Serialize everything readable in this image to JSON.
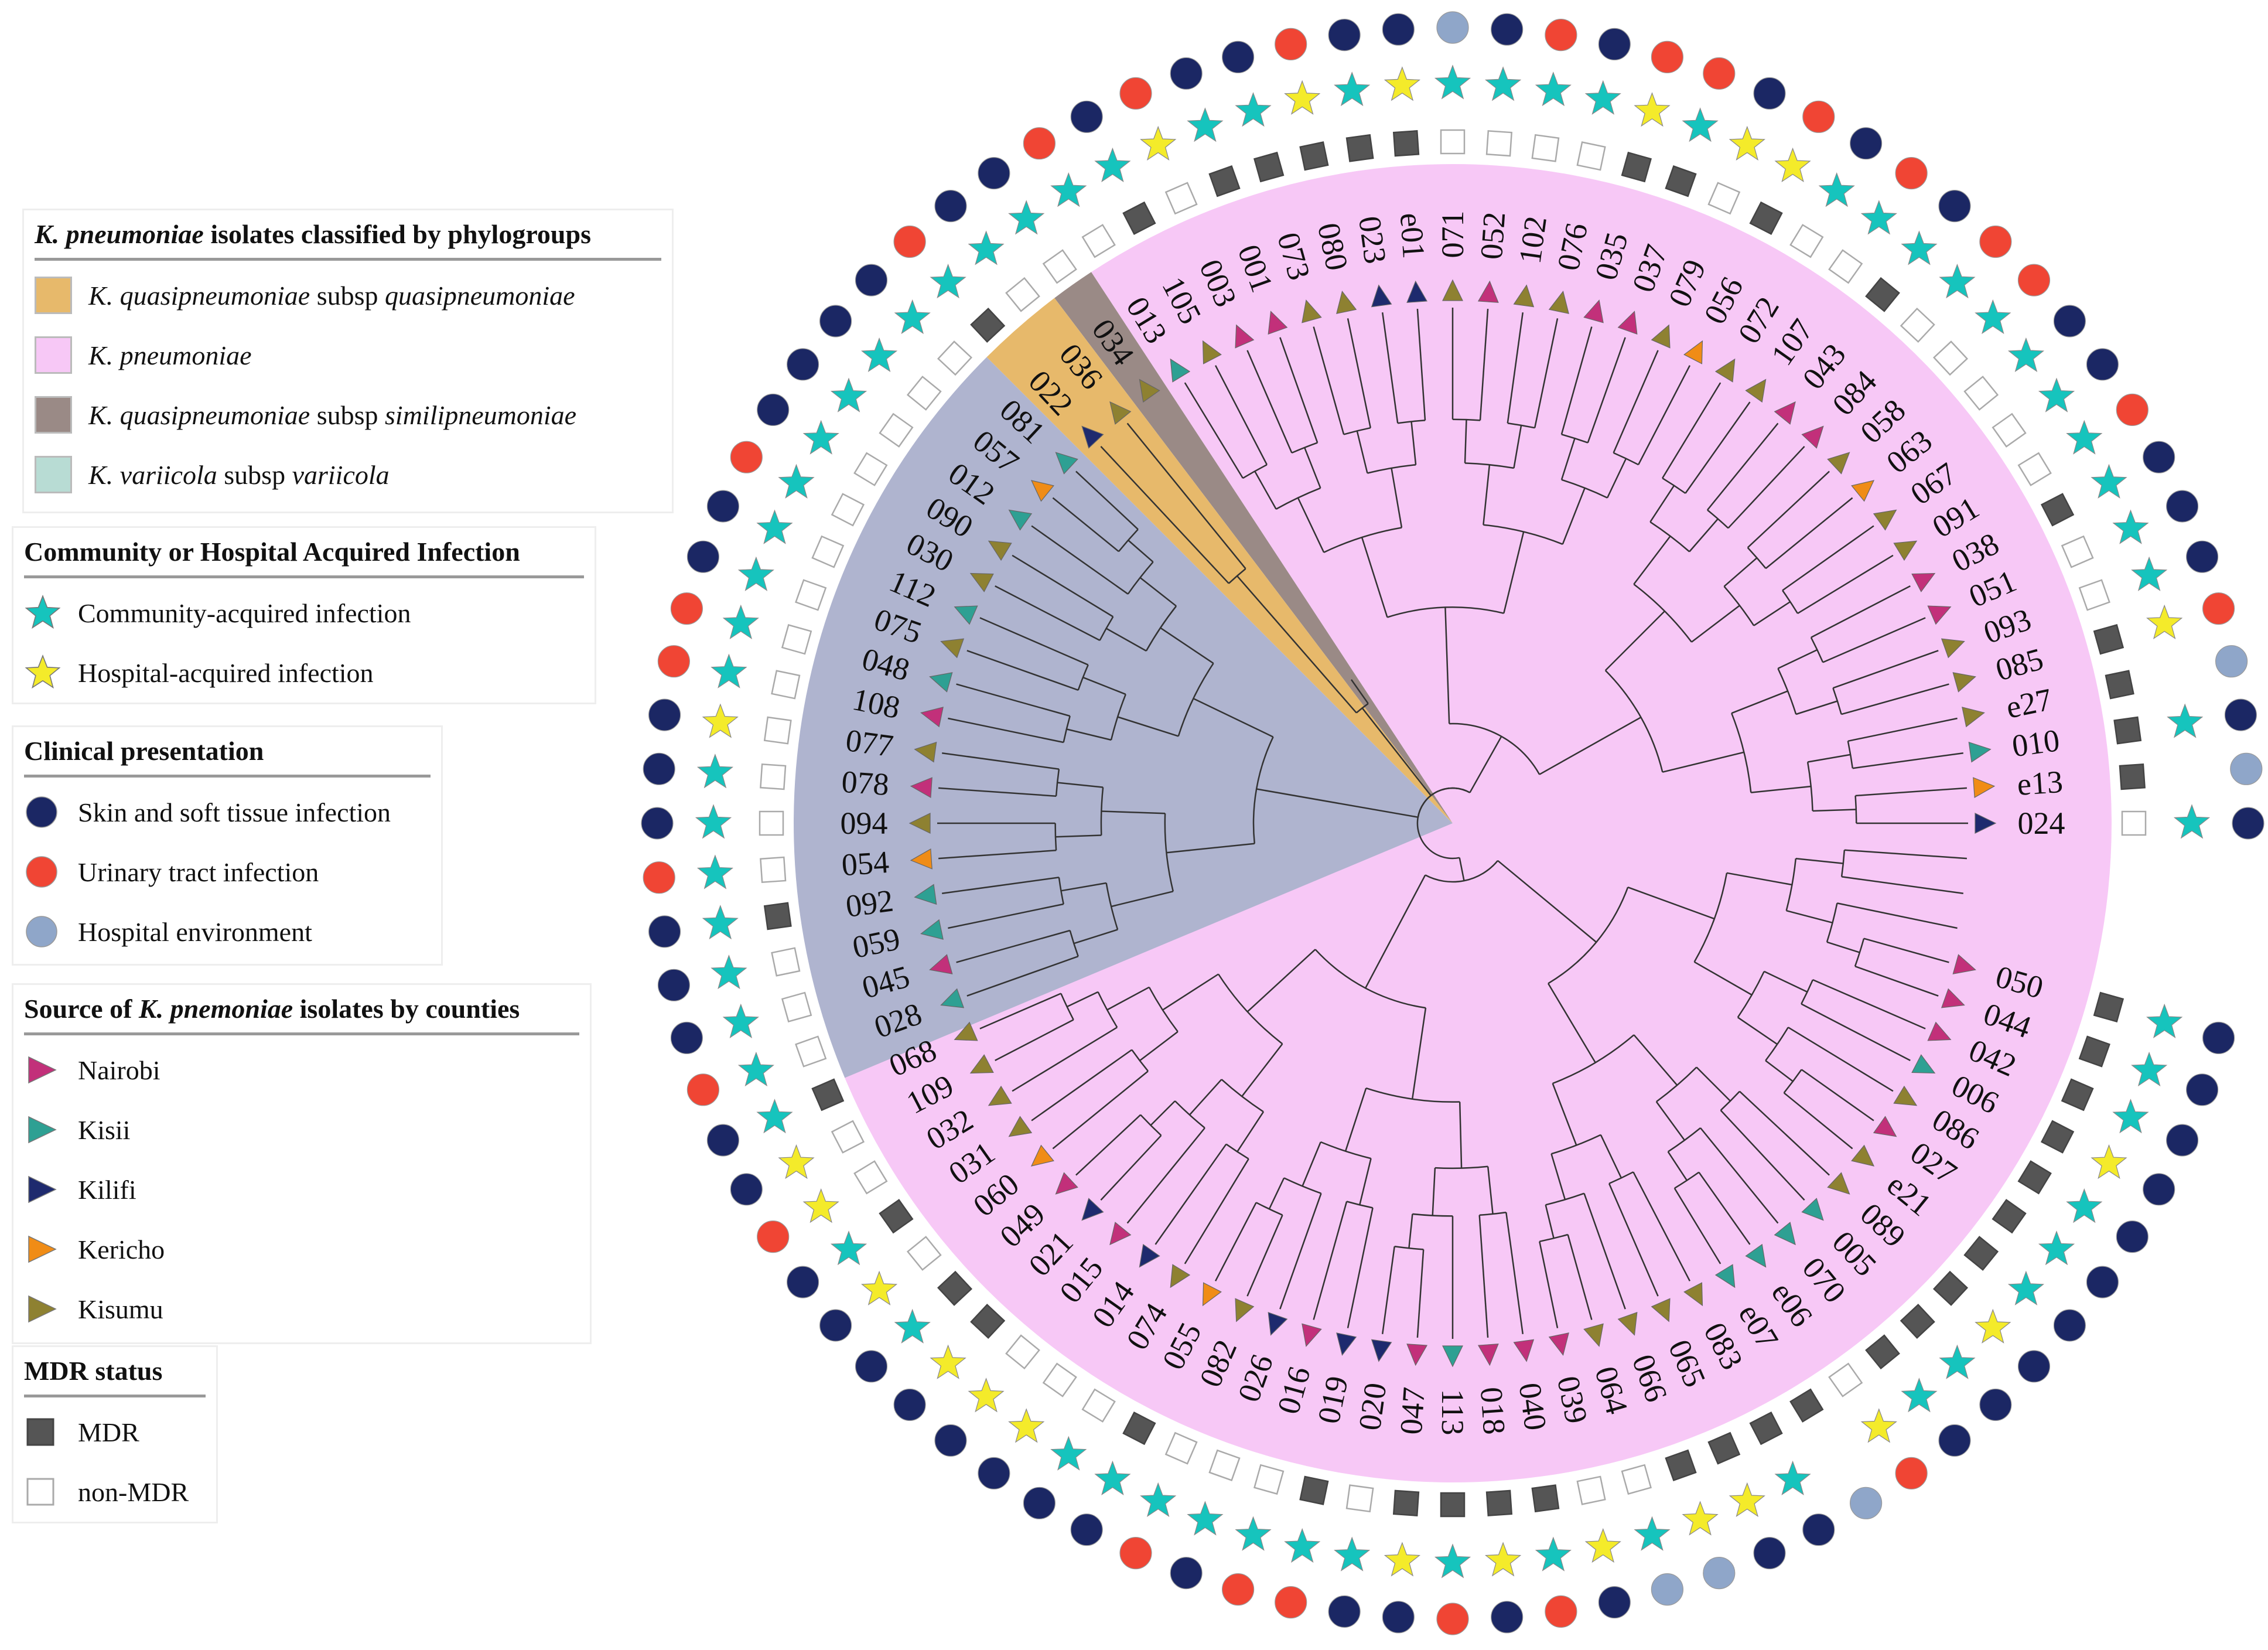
{
  "colors": {
    "clade_pink": "#F7C8F6",
    "clade_gray": "#AFB4CF",
    "clade_orange": "#E7B96B",
    "clade_brown": "#9A8A86",
    "clade_teal": "#B8DCD4",
    "nairobi": "#C2307A",
    "kisii": "#2EA093",
    "kilifi": "#1E2A6E",
    "kericho": "#F08C16",
    "kisumu": "#8E8131",
    "star_community": "#16C4BD",
    "star_hospital": "#F4EB2A",
    "dot_skin": "#1B2764",
    "dot_urinary": "#F04534",
    "dot_environment": "#8FA6C9",
    "mdr": "#555555"
  },
  "legend_phylogroups": {
    "title_italic": "K. pneumoniae",
    "title_rest": " isolates classified by phylogroups",
    "items": [
      {
        "color_key": "clade_orange",
        "italic1": "K. quasipneumoniae",
        "plain": " subsp ",
        "italic2": "quasipneumoniae"
      },
      {
        "color_key": "clade_pink",
        "italic1": "K. pneumoniae",
        "plain": "",
        "italic2": ""
      },
      {
        "color_key": "clade_brown",
        "italic1": "K. quasipneumoniae",
        "plain": " subsp ",
        "italic2": "similipneumoniae"
      },
      {
        "color_key": "clade_teal",
        "italic1": "K. variicola",
        "plain": " subsp ",
        "italic2": "variicola"
      }
    ]
  },
  "legend_infection": {
    "title": "Community or Hospital Acquired Infection",
    "items": [
      {
        "code": "C",
        "label": "Community-acquired infection"
      },
      {
        "code": "H",
        "label": "Hospital-acquired infection"
      }
    ]
  },
  "legend_clinical": {
    "title": "Clinical presentation",
    "items": [
      {
        "code": "S",
        "label": "Skin and soft tissue infection"
      },
      {
        "code": "U",
        "label": "Urinary tract infection"
      },
      {
        "code": "E",
        "label": "Hospital environment"
      }
    ]
  },
  "legend_counties": {
    "title_prefix": "Source of ",
    "title_italic": "K. pnemoniae",
    "title_suffix": " isolates by counties",
    "items": [
      {
        "code": "N",
        "label": "Nairobi"
      },
      {
        "code": "S",
        "label": "Kisii"
      },
      {
        "code": "F",
        "label": "Kilifi"
      },
      {
        "code": "K",
        "label": "Kericho"
      },
      {
        "code": "M",
        "label": "Kisumu"
      }
    ]
  },
  "legend_mdr": {
    "title": "MDR status",
    "items": [
      {
        "code": "1",
        "label": "MDR"
      },
      {
        "code": "0",
        "label": "non-MDR"
      }
    ]
  },
  "tree": {
    "leaves": [
      {
        "id": "024",
        "county": "F",
        "mdr": "0",
        "infection": "C",
        "clinical": "S",
        "group": "pink"
      },
      {
        "id": "e13",
        "county": "K",
        "mdr": "1",
        "infection": "",
        "clinical": "E",
        "group": "pink"
      },
      {
        "id": "010",
        "county": "S",
        "mdr": "1",
        "infection": "C",
        "clinical": "S",
        "group": "pink"
      },
      {
        "id": "e27",
        "county": "M",
        "mdr": "1",
        "infection": "",
        "clinical": "E",
        "group": "pink"
      },
      {
        "id": "085",
        "county": "M",
        "mdr": "1",
        "infection": "H",
        "clinical": "U",
        "group": "pink"
      },
      {
        "id": "093",
        "county": "M",
        "mdr": "0",
        "infection": "C",
        "clinical": "S",
        "group": "pink"
      },
      {
        "id": "051",
        "county": "N",
        "mdr": "0",
        "infection": "C",
        "clinical": "S",
        "group": "pink"
      },
      {
        "id": "038",
        "county": "N",
        "mdr": "1",
        "infection": "C",
        "clinical": "S",
        "group": "pink"
      },
      {
        "id": "091",
        "county": "M",
        "mdr": "0",
        "infection": "C",
        "clinical": "U",
        "group": "pink"
      },
      {
        "id": "067",
        "county": "M",
        "mdr": "0",
        "infection": "C",
        "clinical": "S",
        "group": "pink"
      },
      {
        "id": "063",
        "county": "K",
        "mdr": "0",
        "infection": "C",
        "clinical": "S",
        "group": "pink"
      },
      {
        "id": "058",
        "county": "M",
        "mdr": "0",
        "infection": "C",
        "clinical": "U",
        "group": "pink"
      },
      {
        "id": "084",
        "county": "N",
        "mdr": "0",
        "infection": "C",
        "clinical": "U",
        "group": "pink"
      },
      {
        "id": "043",
        "county": "N",
        "mdr": "1",
        "infection": "C",
        "clinical": "S",
        "group": "pink"
      },
      {
        "id": "107",
        "county": "M",
        "mdr": "0",
        "infection": "C",
        "clinical": "U",
        "group": "pink"
      },
      {
        "id": "072",
        "county": "M",
        "mdr": "0",
        "infection": "C",
        "clinical": "S",
        "group": "pink"
      },
      {
        "id": "056",
        "county": "K",
        "mdr": "1",
        "infection": "H",
        "clinical": "U",
        "group": "pink"
      },
      {
        "id": "079",
        "county": "M",
        "mdr": "0",
        "infection": "H",
        "clinical": "S",
        "group": "pink"
      },
      {
        "id": "037",
        "county": "N",
        "mdr": "1",
        "infection": "C",
        "clinical": "U",
        "group": "pink"
      },
      {
        "id": "035",
        "county": "N",
        "mdr": "1",
        "infection": "H",
        "clinical": "U",
        "group": "pink"
      },
      {
        "id": "076",
        "county": "M",
        "mdr": "0",
        "infection": "C",
        "clinical": "S",
        "group": "pink"
      },
      {
        "id": "102",
        "county": "M",
        "mdr": "0",
        "infection": "C",
        "clinical": "U",
        "group": "pink"
      },
      {
        "id": "052",
        "county": "N",
        "mdr": "0",
        "infection": "C",
        "clinical": "S",
        "group": "pink"
      },
      {
        "id": "071",
        "county": "M",
        "mdr": "0",
        "infection": "C",
        "clinical": "E",
        "group": "pink"
      },
      {
        "id": "e01",
        "county": "F",
        "mdr": "1",
        "infection": "H",
        "clinical": "S",
        "group": "pink"
      },
      {
        "id": "023",
        "county": "F",
        "mdr": "1",
        "infection": "C",
        "clinical": "S",
        "group": "pink"
      },
      {
        "id": "080",
        "county": "M",
        "mdr": "1",
        "infection": "H",
        "clinical": "U",
        "group": "pink"
      },
      {
        "id": "073",
        "county": "M",
        "mdr": "1",
        "infection": "C",
        "clinical": "S",
        "group": "pink"
      },
      {
        "id": "001",
        "county": "N",
        "mdr": "1",
        "infection": "C",
        "clinical": "S",
        "group": "pink"
      },
      {
        "id": "003",
        "county": "N",
        "mdr": "0",
        "infection": "H",
        "clinical": "U",
        "group": "pink"
      },
      {
        "id": "105",
        "county": "M",
        "mdr": "1",
        "infection": "C",
        "clinical": "S",
        "group": "pink"
      },
      {
        "id": "013",
        "county": "S",
        "mdr": "0",
        "infection": "C",
        "clinical": "U",
        "group": "pink"
      },
      {
        "id": "034",
        "county": "M",
        "mdr": "0",
        "infection": "C",
        "clinical": "S",
        "group": "brown"
      },
      {
        "id": "036",
        "county": "M",
        "mdr": "0",
        "infection": "C",
        "clinical": "S",
        "group": "orange"
      },
      {
        "id": "022",
        "county": "F",
        "mdr": "1",
        "infection": "C",
        "clinical": "U",
        "group": "orange"
      },
      {
        "id": "081",
        "county": "S",
        "mdr": "0",
        "infection": "C",
        "clinical": "S",
        "group": "gray"
      },
      {
        "id": "057",
        "county": "K",
        "mdr": "0",
        "infection": "C",
        "clinical": "S",
        "group": "gray"
      },
      {
        "id": "012",
        "county": "S",
        "mdr": "0",
        "infection": "C",
        "clinical": "S",
        "group": "gray"
      },
      {
        "id": "090",
        "county": "M",
        "mdr": "0",
        "infection": "C",
        "clinical": "S",
        "group": "gray"
      },
      {
        "id": "030",
        "county": "M",
        "mdr": "0",
        "infection": "C",
        "clinical": "U",
        "group": "gray"
      },
      {
        "id": "112",
        "county": "S",
        "mdr": "0",
        "infection": "C",
        "clinical": "S",
        "group": "gray"
      },
      {
        "id": "075",
        "county": "M",
        "mdr": "0",
        "infection": "C",
        "clinical": "S",
        "group": "gray"
      },
      {
        "id": "048",
        "county": "S",
        "mdr": "0",
        "infection": "C",
        "clinical": "U",
        "group": "gray"
      },
      {
        "id": "108",
        "county": "N",
        "mdr": "0",
        "infection": "C",
        "clinical": "U",
        "group": "gray"
      },
      {
        "id": "077",
        "county": "M",
        "mdr": "0",
        "infection": "H",
        "clinical": "S",
        "group": "gray"
      },
      {
        "id": "078",
        "county": "N",
        "mdr": "0",
        "infection": "C",
        "clinical": "S",
        "group": "gray"
      },
      {
        "id": "094",
        "county": "M",
        "mdr": "0",
        "infection": "C",
        "clinical": "S",
        "group": "gray"
      },
      {
        "id": "054",
        "county": "K",
        "mdr": "0",
        "infection": "C",
        "clinical": "U",
        "group": "gray"
      },
      {
        "id": "092",
        "county": "S",
        "mdr": "1",
        "infection": "C",
        "clinical": "S",
        "group": "gray"
      },
      {
        "id": "059",
        "county": "S",
        "mdr": "0",
        "infection": "C",
        "clinical": "S",
        "group": "gray"
      },
      {
        "id": "045",
        "county": "N",
        "mdr": "0",
        "infection": "C",
        "clinical": "S",
        "group": "gray"
      },
      {
        "id": "028",
        "county": "S",
        "mdr": "0",
        "infection": "C",
        "clinical": "U",
        "group": "gray"
      },
      {
        "id": "068",
        "county": "M",
        "mdr": "1",
        "infection": "C",
        "clinical": "S",
        "group": "pink"
      },
      {
        "id": "109",
        "county": "M",
        "mdr": "0",
        "infection": "H",
        "clinical": "S",
        "group": "pink"
      },
      {
        "id": "032",
        "county": "M",
        "mdr": "0",
        "infection": "H",
        "clinical": "U",
        "group": "pink"
      },
      {
        "id": "031",
        "county": "M",
        "mdr": "1",
        "infection": "C",
        "clinical": "S",
        "group": "pink"
      },
      {
        "id": "060",
        "county": "K",
        "mdr": "0",
        "infection": "H",
        "clinical": "S",
        "group": "pink"
      },
      {
        "id": "049",
        "county": "N",
        "mdr": "1",
        "infection": "C",
        "clinical": "S",
        "group": "pink"
      },
      {
        "id": "021",
        "county": "F",
        "mdr": "1",
        "infection": "H",
        "clinical": "S",
        "group": "pink"
      },
      {
        "id": "015",
        "county": "N",
        "mdr": "0",
        "infection": "H",
        "clinical": "S",
        "group": "pink"
      },
      {
        "id": "014",
        "county": "F",
        "mdr": "0",
        "infection": "H",
        "clinical": "S",
        "group": "pink"
      },
      {
        "id": "074",
        "county": "M",
        "mdr": "0",
        "infection": "C",
        "clinical": "S",
        "group": "pink"
      },
      {
        "id": "055",
        "county": "K",
        "mdr": "1",
        "infection": "C",
        "clinical": "S",
        "group": "pink"
      },
      {
        "id": "082",
        "county": "M",
        "mdr": "0",
        "infection": "C",
        "clinical": "U",
        "group": "pink"
      },
      {
        "id": "026",
        "county": "F",
        "mdr": "0",
        "infection": "C",
        "clinical": "S",
        "group": "pink"
      },
      {
        "id": "016",
        "county": "N",
        "mdr": "0",
        "infection": "C",
        "clinical": "U",
        "group": "pink"
      },
      {
        "id": "019",
        "county": "F",
        "mdr": "1",
        "infection": "C",
        "clinical": "U",
        "group": "pink"
      },
      {
        "id": "020",
        "county": "F",
        "mdr": "0",
        "infection": "C",
        "clinical": "S",
        "group": "pink"
      },
      {
        "id": "047",
        "county": "N",
        "mdr": "1",
        "infection": "H",
        "clinical": "S",
        "group": "pink"
      },
      {
        "id": "113",
        "county": "S",
        "mdr": "1",
        "infection": "C",
        "clinical": "U",
        "group": "pink"
      },
      {
        "id": "018",
        "county": "N",
        "mdr": "1",
        "infection": "H",
        "clinical": "S",
        "group": "pink"
      },
      {
        "id": "040",
        "county": "N",
        "mdr": "1",
        "infection": "C",
        "clinical": "U",
        "group": "pink"
      },
      {
        "id": "039",
        "county": "N",
        "mdr": "0",
        "infection": "H",
        "clinical": "S",
        "group": "pink"
      },
      {
        "id": "064",
        "county": "M",
        "mdr": "0",
        "infection": "C",
        "clinical": "E",
        "group": "pink"
      },
      {
        "id": "066",
        "county": "M",
        "mdr": "1",
        "infection": "H",
        "clinical": "E",
        "group": "pink"
      },
      {
        "id": "065",
        "county": "M",
        "mdr": "1",
        "infection": "H",
        "clinical": "S",
        "group": "pink"
      },
      {
        "id": "083",
        "county": "M",
        "mdr": "1",
        "infection": "C",
        "clinical": "S",
        "group": "pink"
      },
      {
        "id": "e07",
        "county": "S",
        "mdr": "1",
        "infection": "",
        "clinical": "E",
        "group": "pink"
      },
      {
        "id": "e06",
        "county": "S",
        "mdr": "0",
        "infection": "H",
        "clinical": "U",
        "group": "pink"
      },
      {
        "id": "070",
        "county": "S",
        "mdr": "1",
        "infection": "C",
        "clinical": "S",
        "group": "pink"
      },
      {
        "id": "005",
        "county": "S",
        "mdr": "1",
        "infection": "C",
        "clinical": "S",
        "group": "pink"
      },
      {
        "id": "089",
        "county": "M",
        "mdr": "1",
        "infection": "H",
        "clinical": "S",
        "group": "pink"
      },
      {
        "id": "e21",
        "county": "M",
        "mdr": "1",
        "infection": "C",
        "clinical": "S",
        "group": "pink"
      },
      {
        "id": "027",
        "county": "N",
        "mdr": "1",
        "infection": "C",
        "clinical": "S",
        "group": "pink"
      },
      {
        "id": "086",
        "county": "M",
        "mdr": "1",
        "infection": "C",
        "clinical": "S",
        "group": "pink"
      },
      {
        "id": "006",
        "county": "S",
        "mdr": "1",
        "infection": "H",
        "clinical": "S",
        "group": "pink"
      },
      {
        "id": "042",
        "county": "N",
        "mdr": "1",
        "infection": "C",
        "clinical": "S",
        "group": "pink"
      },
      {
        "id": "044",
        "county": "N",
        "mdr": "1",
        "infection": "C",
        "clinical": "S",
        "group": "pink"
      },
      {
        "id": "050",
        "county": "N",
        "mdr": "1",
        "infection": "C",
        "clinical": "S",
        "group": "pink"
      }
    ]
  }
}
